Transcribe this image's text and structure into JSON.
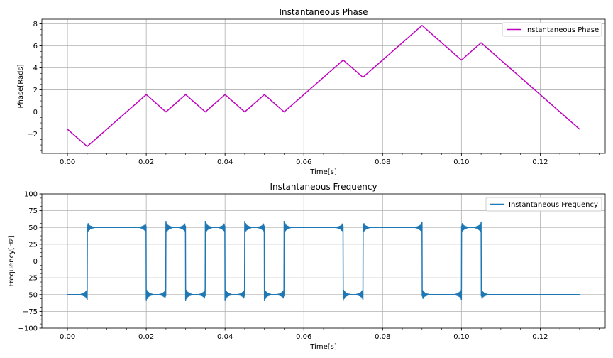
{
  "chart_data": [
    {
      "type": "line",
      "title": "Instantaneous Phase",
      "xlabel": "Time[s]",
      "ylabel": "Phase[Rads]",
      "xlim": [
        -0.0065,
        0.1365
      ],
      "ylim": [
        -3.77,
        8.42
      ],
      "xticks": [
        0.0,
        0.02,
        0.04,
        0.06,
        0.08,
        0.1,
        0.12
      ],
      "xtick_labels": [
        "0.00",
        "0.02",
        "0.04",
        "0.06",
        "0.08",
        "0.10",
        "0.12"
      ],
      "yticks": [
        -2,
        0,
        2,
        4,
        6,
        8
      ],
      "ytick_labels": [
        "−2",
        "0",
        "2",
        "4",
        "6",
        "8"
      ],
      "grid": true,
      "legend_position": "top-right",
      "series": [
        {
          "name": "Instantaneous Phase",
          "color": "#c000c0",
          "x": [
            0.0,
            0.005,
            0.02,
            0.025,
            0.03,
            0.035,
            0.04,
            0.045,
            0.05,
            0.055,
            0.07,
            0.075,
            0.09,
            0.1,
            0.105,
            0.13
          ],
          "y": [
            -1.57,
            -3.14,
            1.57,
            0.0,
            1.57,
            0.0,
            1.57,
            0.0,
            1.57,
            0.0,
            4.71,
            3.14,
            7.85,
            4.71,
            6.28,
            -1.57
          ]
        }
      ]
    },
    {
      "type": "line",
      "title": "Instantaneous Frequency",
      "xlabel": "Time[s]",
      "ylabel": "Frequency[Hz]",
      "xlim": [
        -0.0065,
        0.1365
      ],
      "ylim": [
        -100,
        100
      ],
      "xticks": [
        0.0,
        0.02,
        0.04,
        0.06,
        0.08,
        0.1,
        0.12
      ],
      "xtick_labels": [
        "0.00",
        "0.02",
        "0.04",
        "0.06",
        "0.08",
        "0.10",
        "0.12"
      ],
      "yticks": [
        -100,
        -75,
        -50,
        -25,
        0,
        25,
        50,
        75,
        100
      ],
      "ytick_labels": [
        "−100",
        "−75",
        "−50",
        "−25",
        "0",
        "25",
        "50",
        "75",
        "100"
      ],
      "grid": true,
      "legend_position": "top-right",
      "series": [
        {
          "name": "Instantaneous Frequency",
          "color": "#1f77b4",
          "x": [
            0.0,
            0.005,
            0.005,
            0.02,
            0.02,
            0.025,
            0.025,
            0.03,
            0.03,
            0.035,
            0.035,
            0.04,
            0.04,
            0.045,
            0.045,
            0.05,
            0.05,
            0.055,
            0.055,
            0.07,
            0.07,
            0.075,
            0.075,
            0.09,
            0.09,
            0.1,
            0.1,
            0.105,
            0.105,
            0.13
          ],
          "y": [
            -50,
            -50,
            50,
            50,
            -50,
            -50,
            50,
            50,
            -50,
            -50,
            50,
            50,
            -50,
            -50,
            50,
            50,
            -50,
            -50,
            50,
            50,
            -50,
            -50,
            50,
            50,
            -50,
            -50,
            50,
            50,
            -50,
            -50
          ],
          "ringing": "overshoot to about ±59 Hz with decaying oscillation at each step"
        }
      ]
    }
  ]
}
